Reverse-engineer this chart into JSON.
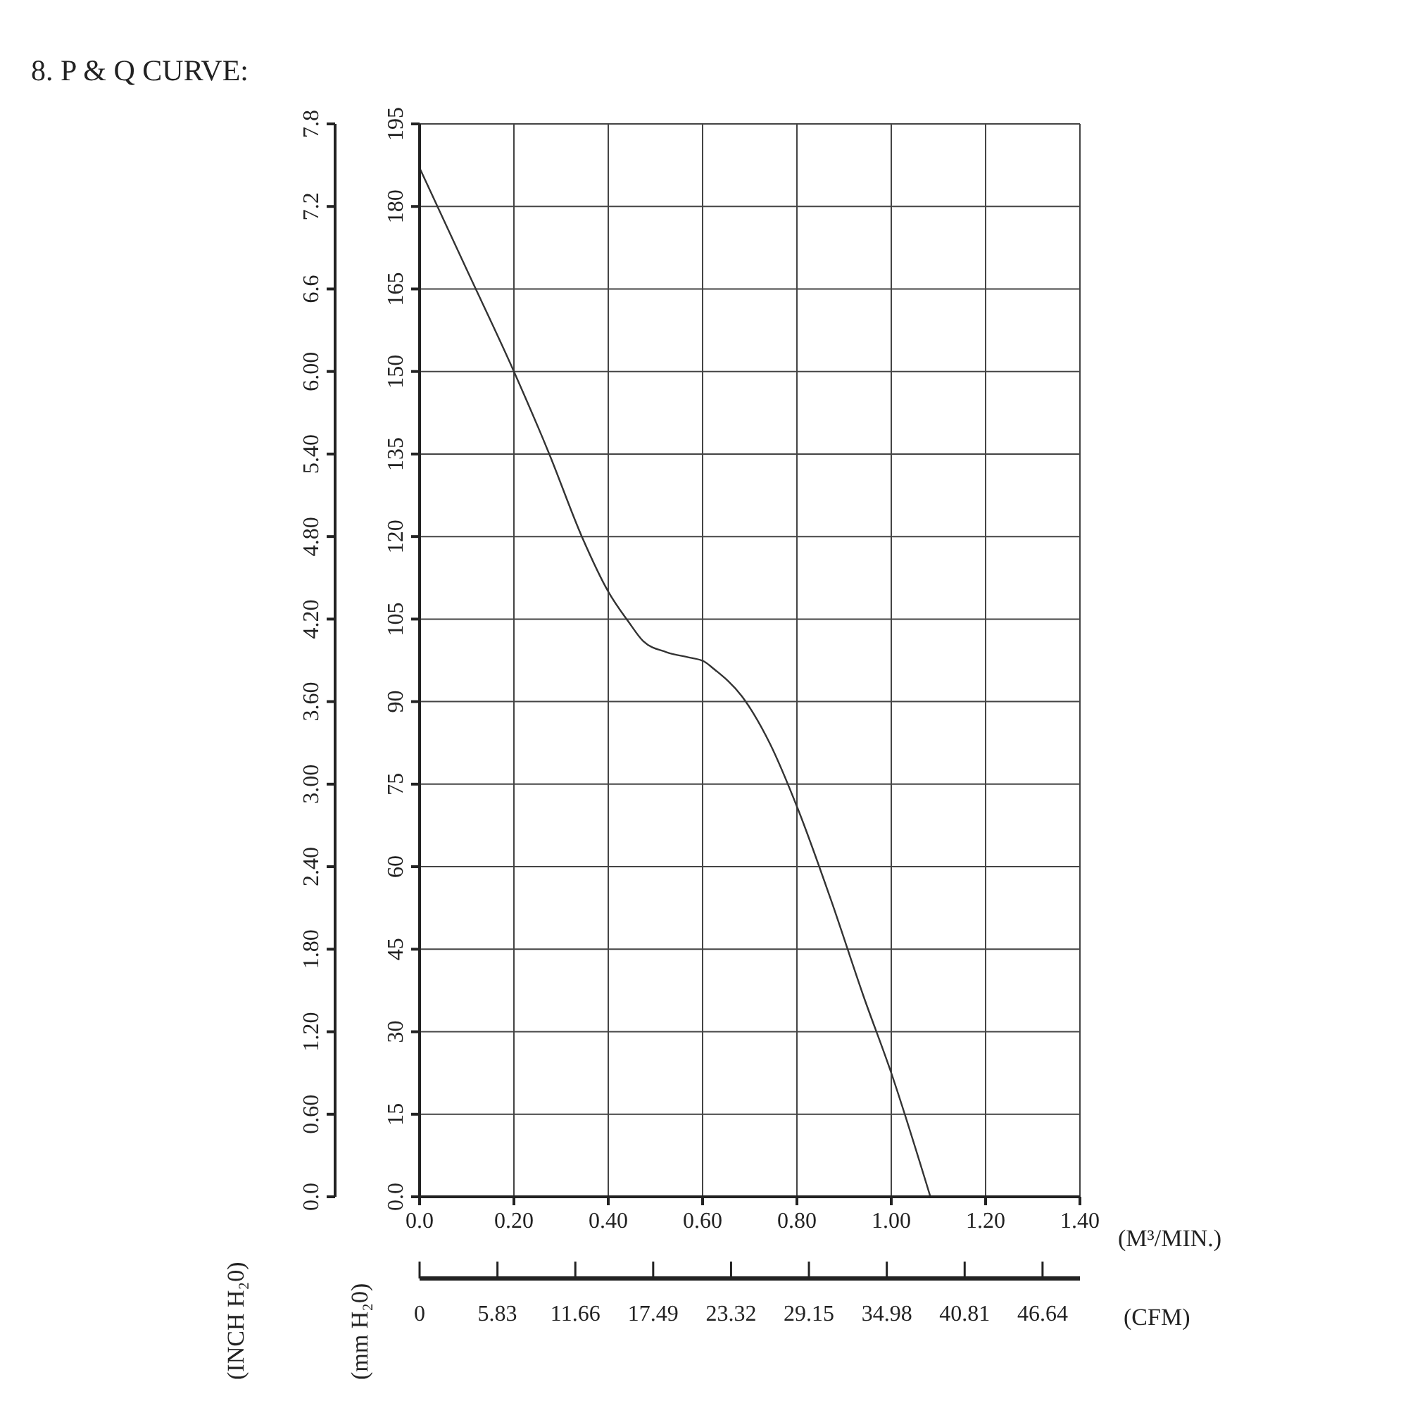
{
  "chart_data": {
    "type": "line",
    "title": "8. P & Q CURVE:",
    "xlabel": "(M³/MIN.)",
    "ylabel": "(mm H₂0)",
    "y2label": "(INCH H₂0)",
    "x2label": "(CFM)",
    "x": [
      0,
      0.1,
      0.2,
      0.275,
      0.344,
      0.4,
      0.443,
      0.474,
      0.523,
      0.573,
      0.603,
      0.623,
      0.683,
      0.742,
      0.802,
      0.872,
      0.941,
      1.0,
      1.083
    ],
    "values": [
      187,
      168.5,
      150,
      135,
      120,
      110,
      104.5,
      101,
      99,
      98,
      97.3,
      96,
      91,
      82.5,
      70.5,
      54,
      36.5,
      22.5,
      0
    ],
    "color": "#333333",
    "line_style": "solid",
    "grid": true,
    "xlim": [
      0,
      1.4
    ],
    "xticks": [
      {
        "value": 0,
        "label": "0.0"
      },
      {
        "value": 0.2,
        "label": "0.20"
      },
      {
        "value": 0.4,
        "label": "0.40"
      },
      {
        "value": 0.6,
        "label": "0.60"
      },
      {
        "value": 0.8,
        "label": "0.80"
      },
      {
        "value": 1.0,
        "label": "1.00"
      },
      {
        "value": 1.2,
        "label": "1.20"
      },
      {
        "value": 1.4,
        "label": "1.40"
      }
    ],
    "x2lim": [
      0,
      49.44
    ],
    "x2ticks": [
      0,
      5.83,
      11.66,
      17.49,
      23.32,
      29.15,
      34.98,
      40.81,
      46.64
    ],
    "ylim": [
      0,
      195
    ],
    "yticks": [
      {
        "value": 0,
        "label": "0.0"
      },
      15,
      30,
      45,
      60,
      75,
      90,
      105,
      120,
      135,
      150,
      165,
      180,
      195
    ],
    "y2lim": [
      0,
      7.8
    ],
    "y2ticks": [
      {
        "value": 0,
        "label": "0.0"
      },
      {
        "value": 0.6,
        "label": "0.60"
      },
      {
        "value": 1.2,
        "label": "1.20"
      },
      {
        "value": 1.8,
        "label": "1.80"
      },
      {
        "value": 2.4,
        "label": "2.40"
      },
      {
        "value": 3.0,
        "label": "3.00"
      },
      {
        "value": 3.6,
        "label": "3.60"
      },
      {
        "value": 4.2,
        "label": "4.20"
      },
      {
        "value": 4.8,
        "label": "4.80"
      },
      {
        "value": 5.4,
        "label": "5.40"
      },
      {
        "value": 6.0,
        "label": "6.00"
      },
      {
        "value": 6.6,
        "label": "6.6"
      },
      {
        "value": 7.2,
        "label": "7.2"
      },
      {
        "value": 7.8,
        "label": "7.8"
      }
    ]
  }
}
